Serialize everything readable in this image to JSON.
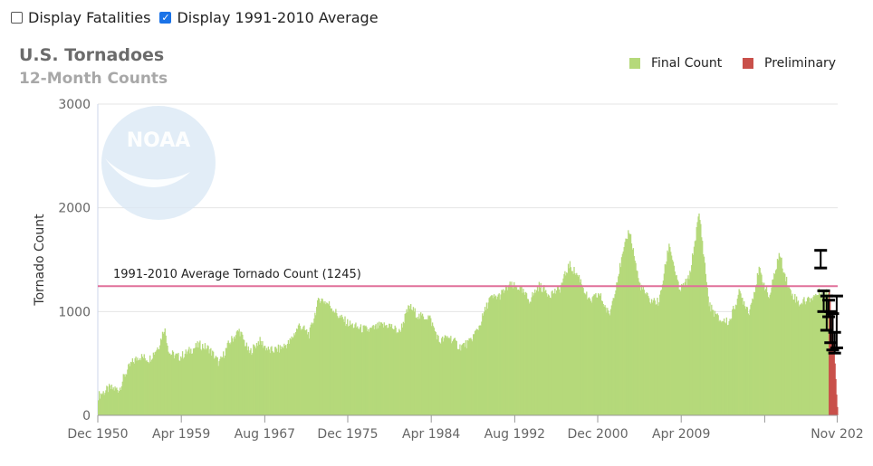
{
  "controls": {
    "display_fatalities": {
      "label": "Display Fatalities",
      "checked": false
    },
    "display_average": {
      "label": "Display 1991-2010 Average",
      "checked": true
    }
  },
  "chart_data": {
    "type": "bar",
    "title": "U.S. Tornadoes",
    "subtitle": "12-Month Counts",
    "ylabel": "Tornado Count",
    "xlabel": "",
    "ylim": [
      0,
      3000
    ],
    "y_ticks": [
      "0",
      "1000",
      "2000",
      "3000"
    ],
    "x_tick_labels": [
      "Dec 1950",
      "Apr 1959",
      "Aug 1967",
      "Dec 1975",
      "Apr 1984",
      "Aug 1992",
      "Dec 2000",
      "Apr 2009",
      "Nov 202"
    ],
    "average_line": {
      "label": "1991-2010 Average Tornado Count (1245)",
      "value": 1245,
      "color": "#e0709a"
    },
    "watermark": "NOAA",
    "series": [
      {
        "name": "Final Count",
        "color": "#b5d97a",
        "x_start": "1950-12",
        "x_end": "2023-12",
        "points": [
          [
            1950.9,
            190
          ],
          [
            1952.0,
            260
          ],
          [
            1953.0,
            250
          ],
          [
            1953.5,
            380
          ],
          [
            1954.2,
            500
          ],
          [
            1955.0,
            570
          ],
          [
            1956.0,
            540
          ],
          [
            1957.0,
            680
          ],
          [
            1957.5,
            850
          ],
          [
            1958.0,
            600
          ],
          [
            1959.0,
            560
          ],
          [
            1960.0,
            620
          ],
          [
            1961.0,
            680
          ],
          [
            1962.0,
            640
          ],
          [
            1963.0,
            500
          ],
          [
            1964.0,
            700
          ],
          [
            1965.0,
            820
          ],
          [
            1966.0,
            600
          ],
          [
            1967.0,
            720
          ],
          [
            1968.0,
            620
          ],
          [
            1969.0,
            640
          ],
          [
            1970.0,
            700
          ],
          [
            1971.0,
            870
          ],
          [
            1972.0,
            780
          ],
          [
            1973.0,
            1130
          ],
          [
            1974.0,
            1070
          ],
          [
            1975.0,
            950
          ],
          [
            1976.0,
            880
          ],
          [
            1977.0,
            840
          ],
          [
            1978.0,
            820
          ],
          [
            1979.0,
            860
          ],
          [
            1980.0,
            870
          ],
          [
            1981.0,
            800
          ],
          [
            1982.0,
            1050
          ],
          [
            1983.0,
            950
          ],
          [
            1984.0,
            950
          ],
          [
            1985.0,
            710
          ],
          [
            1986.0,
            760
          ],
          [
            1987.0,
            660
          ],
          [
            1988.0,
            700
          ],
          [
            1989.0,
            860
          ],
          [
            1990.0,
            1120
          ],
          [
            1991.0,
            1150
          ],
          [
            1992.0,
            1250
          ],
          [
            1993.0,
            1230
          ],
          [
            1994.0,
            1110
          ],
          [
            1995.0,
            1250
          ],
          [
            1996.0,
            1170
          ],
          [
            1997.0,
            1210
          ],
          [
            1998.0,
            1450
          ],
          [
            1999.0,
            1330
          ],
          [
            2000.0,
            1090
          ],
          [
            2001.0,
            1170
          ],
          [
            2002.0,
            960
          ],
          [
            2003.0,
            1400
          ],
          [
            2004.0,
            1800
          ],
          [
            2005.0,
            1270
          ],
          [
            2006.0,
            1110
          ],
          [
            2007.0,
            1090
          ],
          [
            2008.0,
            1660
          ],
          [
            2009.0,
            1200
          ],
          [
            2010.0,
            1320
          ],
          [
            2011.0,
            1950
          ],
          [
            2012.0,
            1060
          ],
          [
            2013.0,
            920
          ],
          [
            2014.0,
            900
          ],
          [
            2015.0,
            1180
          ],
          [
            2016.0,
            1000
          ],
          [
            2017.0,
            1400
          ],
          [
            2018.0,
            1130
          ],
          [
            2019.0,
            1560
          ],
          [
            2020.0,
            1210
          ],
          [
            2021.0,
            1080
          ],
          [
            2022.0,
            1120
          ],
          [
            2023.0,
            1180
          ]
        ]
      },
      {
        "name": "Preliminary",
        "color": "#c9504a",
        "x_start": "2024-01",
        "x_end": "2024-11",
        "values": [
          1200,
          1100,
          1000,
          950,
          850,
          700,
          600,
          500,
          350,
          200,
          80
        ]
      }
    ],
    "error_bars": [
      {
        "x": 2023.2,
        "low": 1420,
        "high": 1590
      },
      {
        "x": 2023.5,
        "low": 1000,
        "high": 1200
      },
      {
        "x": 2023.8,
        "low": 820,
        "high": 1150
      },
      {
        "x": 2024.0,
        "low": 950,
        "high": 1110
      },
      {
        "x": 2024.2,
        "low": 700,
        "high": 1000
      },
      {
        "x": 2024.4,
        "low": 630,
        "high": 980
      },
      {
        "x": 2024.6,
        "low": 600,
        "high": 800
      },
      {
        "x": 2024.8,
        "low": 650,
        "high": 1150
      }
    ],
    "grid": true,
    "legend_position": "top-right"
  }
}
